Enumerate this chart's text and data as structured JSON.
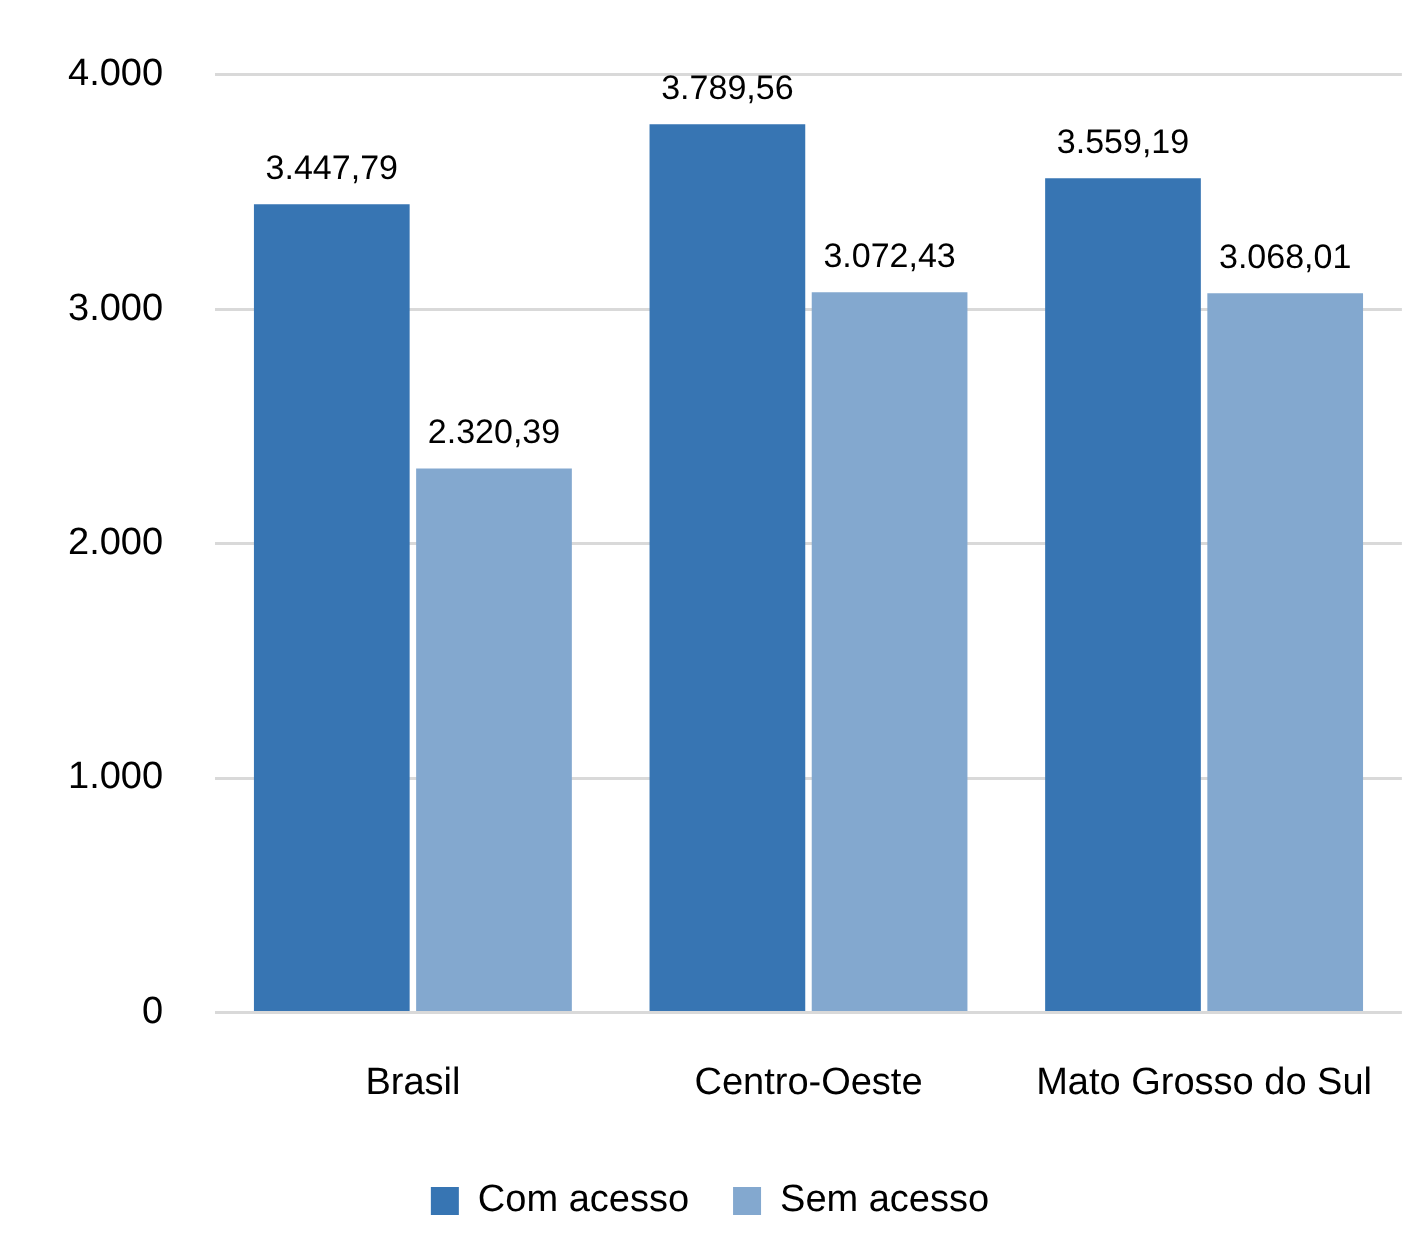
{
  "chart_data": {
    "type": "bar",
    "categories": [
      "Brasil",
      "Centro-Oeste",
      "Mato Grosso do Sul"
    ],
    "series": [
      {
        "name": "Com acesso",
        "color": "#3775b3",
        "values": [
          3447.79,
          3789.56,
          3559.19
        ],
        "value_labels": [
          "3.447,79",
          "3.789,56",
          "3.559,19"
        ]
      },
      {
        "name": "Sem acesso",
        "color": "#83a8cf",
        "values": [
          2320.39,
          3072.43,
          3068.01
        ],
        "value_labels": [
          "2.320,39",
          "3.072,43",
          "3.068,01"
        ]
      }
    ],
    "ylim": [
      0,
      4000
    ],
    "yticks": [
      0,
      {
        "value": 1000,
        "label": "1.000"
      },
      {
        "value": 2000,
        "label": "2.000"
      },
      {
        "value": 3000,
        "label": "3.000"
      },
      {
        "value": 4000,
        "label": "4.000"
      }
    ],
    "grid": "y",
    "legend": "bottom"
  }
}
